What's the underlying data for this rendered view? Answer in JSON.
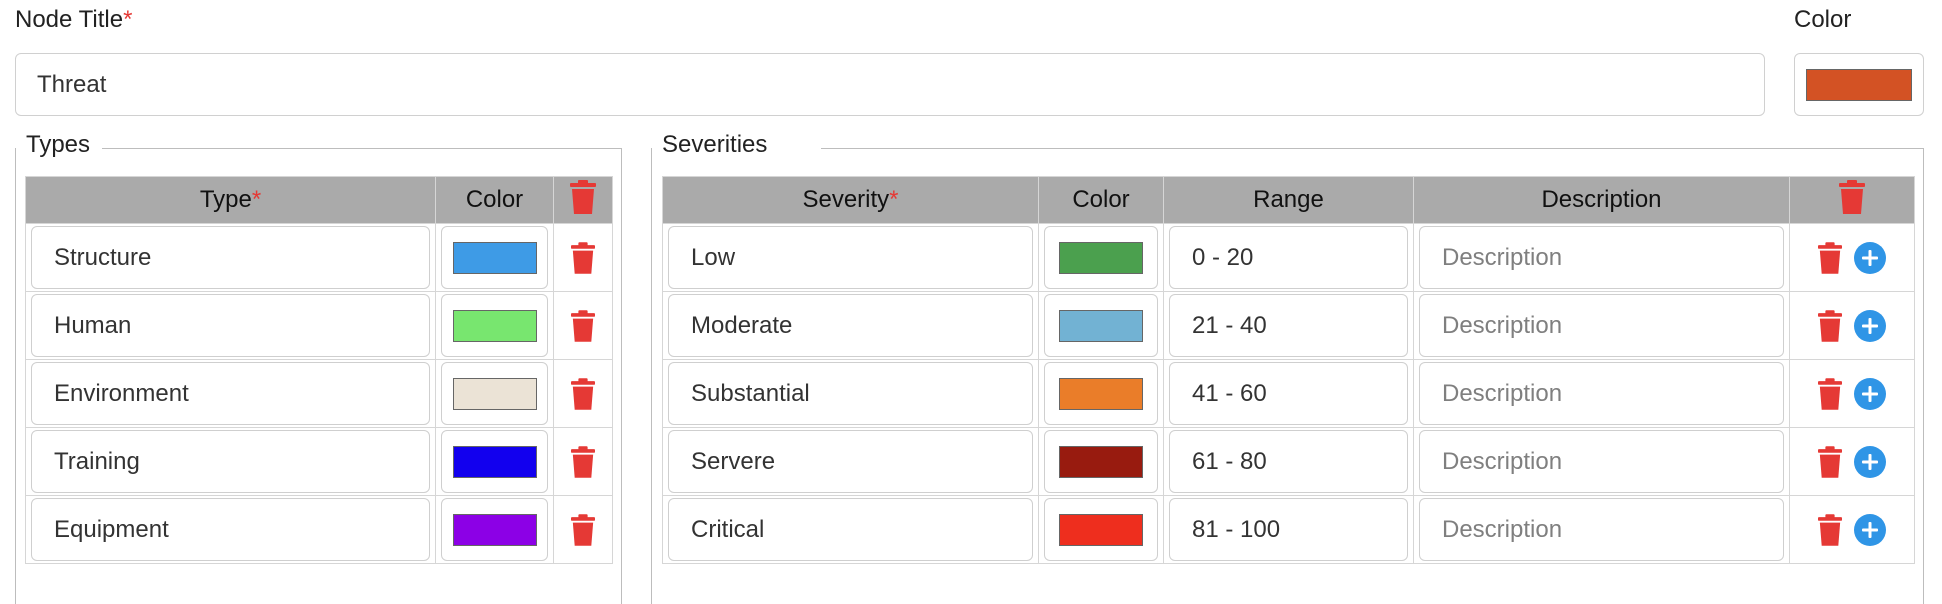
{
  "node_title": {
    "label": "Node Title",
    "required_mark": "*",
    "value": "Threat"
  },
  "node_color": {
    "label": "Color",
    "value": "#d35224"
  },
  "types": {
    "legend": "Types",
    "headers": {
      "type": "Type",
      "required_mark": "*",
      "color": "Color"
    },
    "rows": [
      {
        "name": "Structure",
        "color": "#3e9be6"
      },
      {
        "name": "Human",
        "color": "#78e66f"
      },
      {
        "name": "Environment",
        "color": "#ebe3d6"
      },
      {
        "name": "Training",
        "color": "#1200ee"
      },
      {
        "name": "Equipment",
        "color": "#8c00e6"
      }
    ]
  },
  "severities": {
    "legend": "Severities",
    "headers": {
      "severity": "Severity",
      "required_mark": "*",
      "color": "Color",
      "range": "Range",
      "description": "Description"
    },
    "description_placeholder": "Description",
    "rows": [
      {
        "name": "Low",
        "color": "#4ba04e",
        "range": "0 - 20"
      },
      {
        "name": "Moderate",
        "color": "#72b2d3",
        "range": "21 - 40"
      },
      {
        "name": "Substantial",
        "color": "#ea7d29",
        "range": "41 - 60"
      },
      {
        "name": "Servere",
        "color": "#981b0f",
        "range": "61 - 80"
      },
      {
        "name": "Critical",
        "color": "#ee2e1e",
        "range": "81 - 100"
      }
    ]
  },
  "icons": {
    "delete": "trash-icon",
    "add": "plus-circle-icon",
    "accent_red": "#e53935",
    "accent_blue": "#2f95e6"
  }
}
